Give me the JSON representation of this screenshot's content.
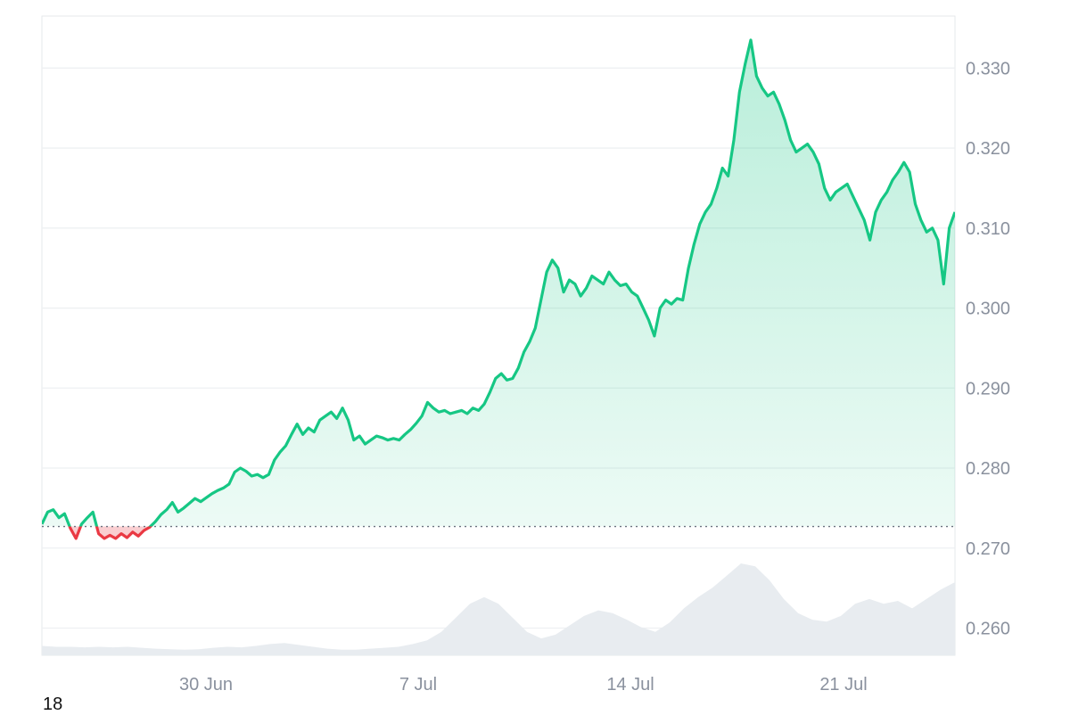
{
  "chart_data": {
    "type": "area",
    "series": [
      {
        "values": [
          0.273,
          0.2745,
          0.2748,
          0.2738,
          0.2743,
          0.2725,
          0.2712,
          0.273,
          0.2738,
          0.2745,
          0.2718,
          0.2712,
          0.2716,
          0.2712,
          0.2718,
          0.2713,
          0.272,
          0.2715,
          0.2722,
          0.2726,
          0.2733,
          0.2742,
          0.2748,
          0.2757,
          0.2745,
          0.275,
          0.2756,
          0.2762,
          0.2758,
          0.2763,
          0.2768,
          0.2772,
          0.2775,
          0.278,
          0.2795,
          0.28,
          0.2796,
          0.279,
          0.2792,
          0.2788,
          0.2792,
          0.281,
          0.282,
          0.2828,
          0.2842,
          0.2855,
          0.2842,
          0.285,
          0.2845,
          0.286,
          0.2865,
          0.287,
          0.2862,
          0.2875,
          0.286,
          0.2835,
          0.284,
          0.283,
          0.2835,
          0.284,
          0.2838,
          0.2835,
          0.2837,
          0.2835,
          0.2842,
          0.2848,
          0.2856,
          0.2865,
          0.2882,
          0.2875,
          0.287,
          0.2872,
          0.2868,
          0.287,
          0.2872,
          0.2868,
          0.2875,
          0.2872,
          0.288,
          0.2895,
          0.2912,
          0.2918,
          0.291,
          0.2912,
          0.2925,
          0.2945,
          0.2958,
          0.2975,
          0.301,
          0.3045,
          0.306,
          0.305,
          0.302,
          0.3035,
          0.303,
          0.3015,
          0.3025,
          0.304,
          0.3035,
          0.303,
          0.3045,
          0.3035,
          0.3028,
          0.303,
          0.302,
          0.3015,
          0.3,
          0.2985,
          0.2965,
          0.3,
          0.301,
          0.3005,
          0.3012,
          0.301,
          0.305,
          0.308,
          0.3105,
          0.312,
          0.313,
          0.315,
          0.3175,
          0.3165,
          0.321,
          0.327,
          0.3305,
          0.3335,
          0.329,
          0.3275,
          0.3265,
          0.327,
          0.3255,
          0.3235,
          0.321,
          0.3195,
          0.32,
          0.3205,
          0.3195,
          0.318,
          0.315,
          0.3135,
          0.3145,
          0.315,
          0.3155,
          0.314,
          0.3125,
          0.311,
          0.3085,
          0.312,
          0.3135,
          0.3145,
          0.316,
          0.317,
          0.3182,
          0.317,
          0.313,
          0.311,
          0.3095,
          0.31,
          0.3085,
          0.303,
          0.31,
          0.312
        ]
      }
    ],
    "xticks": [
      "30 Jun",
      "7 Jul",
      "14 Jul",
      "21 Jul"
    ],
    "yticks": [
      "0.260",
      "0.270",
      "0.280",
      "0.290",
      "0.300",
      "0.310",
      "0.320",
      "0.330"
    ],
    "ylim": [
      0.2566,
      0.3365
    ],
    "baseline": 0.2727,
    "volume": [
      0.1,
      0.09,
      0.09,
      0.085,
      0.09,
      0.085,
      0.09,
      0.08,
      0.07,
      0.065,
      0.06,
      0.065,
      0.08,
      0.09,
      0.085,
      0.1,
      0.12,
      0.13,
      0.11,
      0.09,
      0.07,
      0.06,
      0.06,
      0.07,
      0.08,
      0.09,
      0.12,
      0.16,
      0.25,
      0.4,
      0.55,
      0.62,
      0.55,
      0.4,
      0.25,
      0.18,
      0.22,
      0.32,
      0.42,
      0.48,
      0.45,
      0.38,
      0.3,
      0.25,
      0.35,
      0.5,
      0.62,
      0.72,
      0.85,
      0.98,
      0.95,
      0.8,
      0.6,
      0.45,
      0.38,
      0.36,
      0.42,
      0.55,
      0.6,
      0.55,
      0.58,
      0.5,
      0.6,
      0.7,
      0.78
    ],
    "grid": true,
    "colors": {
      "up": "#16c784",
      "down": "#ea3943",
      "grid": "#eef0f2",
      "axis_text": "#8a919e",
      "volume": "#e8ecf0",
      "baseline": "#6b7280"
    }
  },
  "footer": {
    "corner_text": "18"
  }
}
